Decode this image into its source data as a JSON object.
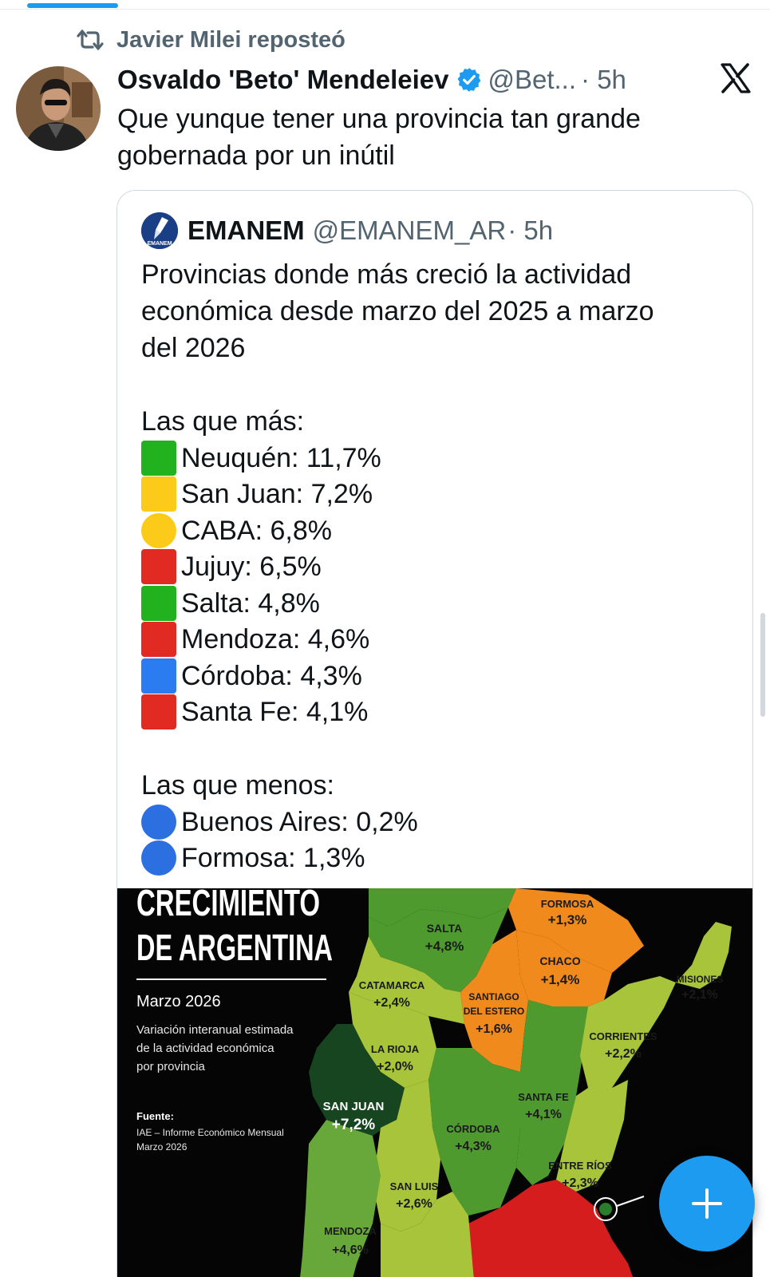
{
  "repost": {
    "label": "Javier Milei reposteó",
    "icon": "repost-icon"
  },
  "tweet": {
    "author_name": "Osvaldo 'Beto' Mendeleiev",
    "handle": "@Bet...",
    "time": "· 5h",
    "text_line1": "Que yunque tener una provincia tan grande",
    "text_line2": "gobernada por un inútil"
  },
  "quote": {
    "author_name": "EMANEM",
    "handle": "@EMANEM_AR",
    "time": "· 5h",
    "avatar_text": "EMANEM",
    "intro_line1": "Provincias donde más creció la actividad",
    "intro_line2": "económica desde marzo del 2025 a marzo",
    "intro_line3": "del 2026",
    "top_heading": "Las que más:",
    "top": [
      {
        "text": "Neuquén: 11,7%",
        "color": "#22b21f",
        "shape": "square"
      },
      {
        "text": "San Juan: 7,2%",
        "color": "#fccb1a",
        "shape": "square"
      },
      {
        "text": "CABA: 6,8%",
        "color": "#fccb1a",
        "shape": "circle"
      },
      {
        "text": "Jujuy: 6,5%",
        "color": "#e12b22",
        "shape": "square"
      },
      {
        "text": "Salta: 4,8%",
        "color": "#22b21f",
        "shape": "square"
      },
      {
        "text": "Mendoza: 4,6%",
        "color": "#e12b22",
        "shape": "square"
      },
      {
        "text": "Córdoba: 4,3%",
        "color": "#2b7cf0",
        "shape": "square"
      },
      {
        "text": "Santa Fe: 4,1%",
        "color": "#e12b22",
        "shape": "square"
      }
    ],
    "bottom_heading": "Las que menos:",
    "bottom": [
      {
        "text": "Buenos Aires: 0,2%",
        "color": "#2b6fe0",
        "shape": "circle"
      },
      {
        "text": "Formosa: 1,3%",
        "color": "#2b6fe0",
        "shape": "circle"
      }
    ]
  },
  "map": {
    "title_line1": "CRECIMIENTO",
    "title_line2": "DE ARGENTINA",
    "subtitle": "Marzo 2026",
    "desc_line1": "Variación interanual estimada",
    "desc_line2": "de la actividad económica",
    "desc_line3": "por provincia",
    "source_label": "Fuente:",
    "source_line1": "IAE – Informe Económico Mensual",
    "source_line2": "Marzo 2026",
    "provinces": {
      "salta": {
        "name": "SALTA",
        "value": "+4,8%"
      },
      "formosa": {
        "name": "FORMOSA",
        "value": "+1,3%"
      },
      "chaco": {
        "name": "CHACO",
        "value": "+1,4%"
      },
      "misiones": {
        "name": "MISIONES",
        "value": "+2,1%"
      },
      "catamarca": {
        "name": "CATAMARCA",
        "value": "+2,4%"
      },
      "santiago_1": {
        "name": "SANTIAGO",
        "value": "+1,6%"
      },
      "santiago_2": {
        "name": "DEL ESTERO"
      },
      "corrientes": {
        "name": "CORRIENTES",
        "value": "+2,2%"
      },
      "la_rioja": {
        "name": "LA RIOJA",
        "value": "+2,0%"
      },
      "santa_fe": {
        "name": "SANTA FE",
        "value": "+4,1%"
      },
      "san_juan": {
        "name": "SAN JUAN",
        "value": "+7,2%"
      },
      "cordoba": {
        "name": "CÓRDOBA",
        "value": "+4,3%"
      },
      "entre_rios": {
        "name": "ENTRE RÍOS",
        "value": "+2,3%"
      },
      "san_luis": {
        "name": "SAN LUIS",
        "value": "+2,6%"
      },
      "mendoza": {
        "name": "MENDOZA",
        "value": "+4,6%"
      }
    }
  },
  "fab": {
    "icon": "plus-icon"
  }
}
